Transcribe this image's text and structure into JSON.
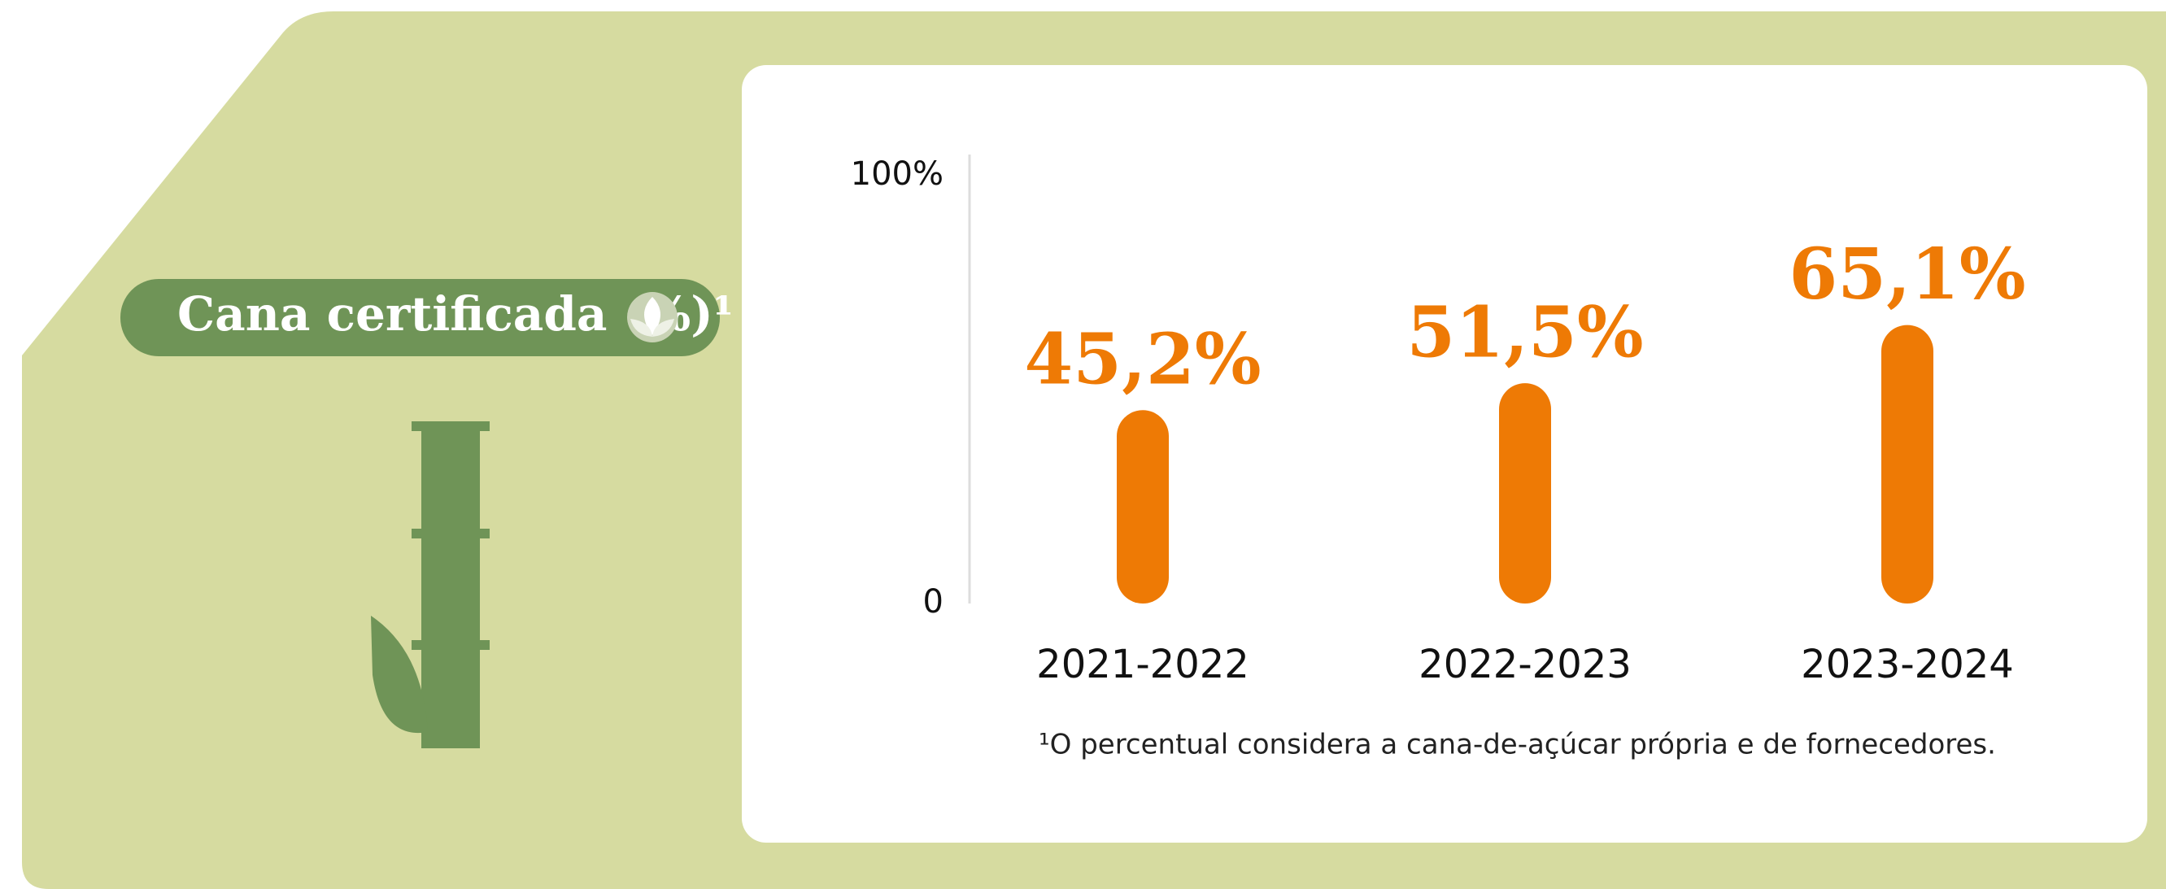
{
  "chart_data": {
    "type": "bar",
    "title": "Cana certificada (%)¹",
    "categories": [
      "2021-2022",
      "2022-2023",
      "2023-2024"
    ],
    "values": [
      45.2,
      51.5,
      65.1
    ],
    "value_labels": [
      "45,2%",
      "51,5%",
      "65,1%"
    ],
    "color": "#ee7a05",
    "ylim": [
      0,
      100
    ],
    "yticks": [
      0,
      {
        "value": 100,
        "label": "100%"
      }
    ],
    "footnote": "¹O percentual considera a cana-de-açúcar própria e de fornecedores."
  }
}
